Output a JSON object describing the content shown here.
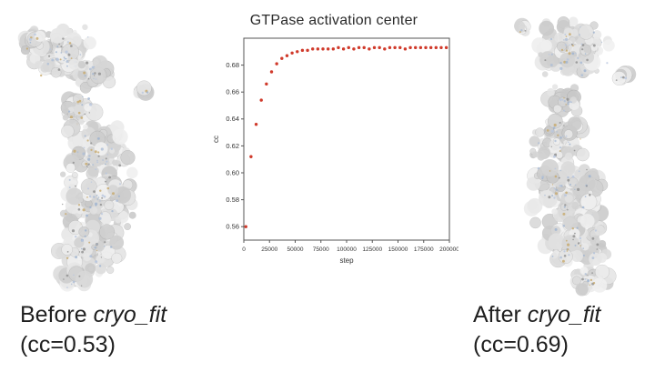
{
  "captions": {
    "before": {
      "prefix": "Before ",
      "program": "cryo_fit",
      "cc": "(cc=0.53)"
    },
    "after": {
      "prefix": "After ",
      "program": "cryo_fit",
      "cc": "(cc=0.69)"
    }
  },
  "figures": {
    "left_name": "cryo-EM density map before fitting",
    "right_name": "cryo-EM density map after fitting"
  },
  "colors": {
    "marker": "#d03a2b",
    "axis": "#555555",
    "tick_text": "#333333",
    "map_base_low": 200,
    "map_base_high": 242,
    "speck_palette": [
      "#9db3cf",
      "#b9c7de",
      "#c7a96b",
      "#8d8d8d",
      "#aebed6"
    ]
  },
  "chart_data": {
    "type": "scatter",
    "title": "GTPase activation center",
    "xlabel": "step",
    "ylabel": "cc",
    "xlim": [
      0,
      200000
    ],
    "ylim": [
      0.55,
      0.7
    ],
    "xticks": [
      0,
      25000,
      50000,
      75000,
      100000,
      125000,
      150000,
      175000,
      200000
    ],
    "yticks": [
      0.56,
      0.58,
      0.6,
      0.62,
      0.64,
      0.66,
      0.68
    ],
    "grid": false,
    "legend": "none",
    "points": [
      [
        2000,
        0.56
      ],
      [
        7000,
        0.612
      ],
      [
        12000,
        0.636
      ],
      [
        17000,
        0.654
      ],
      [
        22000,
        0.666
      ],
      [
        27000,
        0.675
      ],
      [
        32000,
        0.681
      ],
      [
        37000,
        0.685
      ],
      [
        42000,
        0.687
      ],
      [
        47000,
        0.689
      ],
      [
        52000,
        0.69
      ],
      [
        57000,
        0.691
      ],
      [
        62000,
        0.691
      ],
      [
        67000,
        0.692
      ],
      [
        72000,
        0.692
      ],
      [
        77000,
        0.692
      ],
      [
        82000,
        0.692
      ],
      [
        87000,
        0.692
      ],
      [
        92000,
        0.693
      ],
      [
        97000,
        0.692
      ],
      [
        102000,
        0.693
      ],
      [
        107000,
        0.692
      ],
      [
        112000,
        0.693
      ],
      [
        117000,
        0.693
      ],
      [
        122000,
        0.692
      ],
      [
        127000,
        0.693
      ],
      [
        132000,
        0.693
      ],
      [
        137000,
        0.692
      ],
      [
        142000,
        0.693
      ],
      [
        147000,
        0.693
      ],
      [
        152000,
        0.693
      ],
      [
        157000,
        0.692
      ],
      [
        162000,
        0.693
      ],
      [
        167000,
        0.693
      ],
      [
        172000,
        0.693
      ],
      [
        177000,
        0.693
      ],
      [
        182000,
        0.693
      ],
      [
        187000,
        0.693
      ],
      [
        192000,
        0.693
      ],
      [
        197000,
        0.693
      ]
    ]
  }
}
